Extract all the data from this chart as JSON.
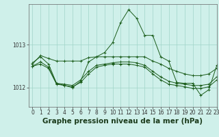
{
  "background_color": "#cff0ea",
  "plot_bg_color": "#cff0ea",
  "line_color": "#1a5c1a",
  "grid_color": "#a0d4c8",
  "xlabel": "Graphe pression niveau de la mer (hPa)",
  "xlabel_fontsize": 7.5,
  "ylim": [
    1011.55,
    1013.95
  ],
  "xlim": [
    -0.5,
    23
  ],
  "yticks": [
    1012,
    1013
  ],
  "xticks": [
    0,
    1,
    2,
    3,
    4,
    5,
    6,
    7,
    8,
    9,
    10,
    11,
    12,
    13,
    14,
    15,
    16,
    17,
    18,
    19,
    20,
    21,
    22,
    23
  ],
  "tick_fontsize": 5.5,
  "lines": [
    {
      "x": [
        0,
        1,
        2,
        3,
        4,
        5,
        6,
        7,
        8,
        9,
        10,
        11,
        12,
        13,
        14,
        15,
        16,
        17,
        18,
        19,
        20,
        21,
        22,
        23
      ],
      "y": [
        1012.55,
        1012.75,
        1012.68,
        1012.62,
        1012.62,
        1012.62,
        1012.62,
        1012.7,
        1012.72,
        1012.72,
        1012.72,
        1012.72,
        1012.72,
        1012.72,
        1012.72,
        1012.62,
        1012.55,
        1012.45,
        1012.38,
        1012.32,
        1012.28,
        1012.28,
        1012.32,
        1012.45
      ]
    },
    {
      "x": [
        0,
        1,
        2,
        3,
        4,
        5,
        6,
        7,
        8,
        9,
        10,
        11,
        12,
        13,
        14,
        15,
        16,
        17,
        18,
        19,
        20,
        21,
        22,
        23
      ],
      "y": [
        1012.5,
        1012.6,
        1012.48,
        1012.1,
        1012.08,
        1012.05,
        1012.18,
        1012.38,
        1012.52,
        1012.55,
        1012.58,
        1012.6,
        1012.6,
        1012.58,
        1012.52,
        1012.38,
        1012.25,
        1012.15,
        1012.1,
        1012.08,
        1012.05,
        1012.05,
        1012.08,
        1012.25
      ]
    },
    {
      "x": [
        0,
        1,
        2,
        3,
        4,
        5,
        6,
        7,
        8,
        9,
        10,
        11,
        12,
        13,
        14,
        15,
        16,
        17,
        18,
        19,
        20,
        21,
        22,
        23
      ],
      "y": [
        1012.5,
        1012.55,
        1012.45,
        1012.08,
        1012.05,
        1012.02,
        1012.12,
        1012.32,
        1012.48,
        1012.52,
        1012.55,
        1012.55,
        1012.55,
        1012.52,
        1012.48,
        1012.32,
        1012.18,
        1012.08,
        1012.05,
        1012.02,
        1011.98,
        1011.98,
        1012.02,
        1012.18
      ]
    },
    {
      "x": [
        0,
        1,
        2,
        3,
        4,
        5,
        6,
        7,
        8,
        9,
        10,
        11,
        12,
        13,
        14,
        15,
        16,
        17,
        18,
        19,
        20,
        21,
        22,
        23
      ],
      "y": [
        1012.58,
        1012.72,
        1012.55,
        1012.1,
        1012.05,
        1012.0,
        1012.15,
        1012.6,
        1012.72,
        1012.82,
        1013.05,
        1013.52,
        1013.82,
        1013.62,
        1013.22,
        1013.22,
        1012.72,
        1012.62,
        1012.12,
        1012.1,
        1012.1,
        1011.82,
        1011.95,
        1012.52
      ]
    }
  ]
}
